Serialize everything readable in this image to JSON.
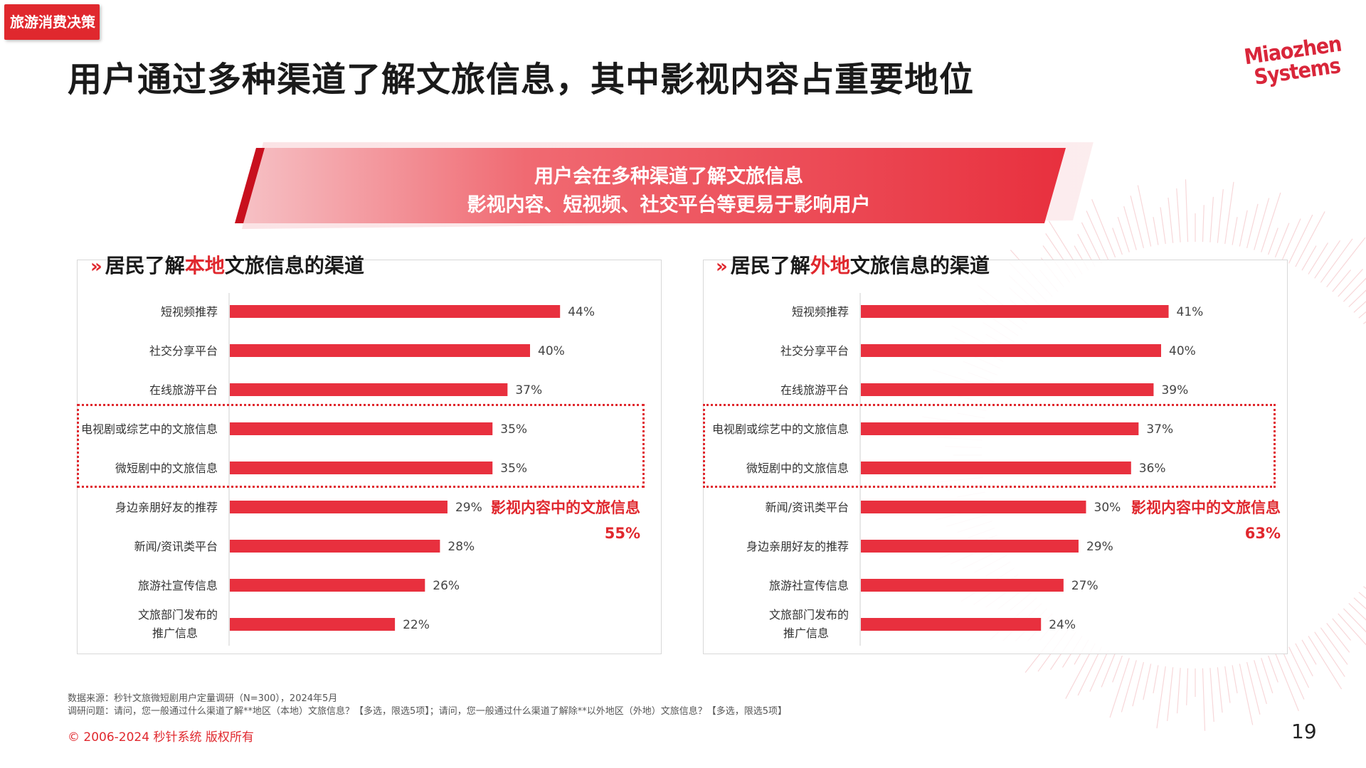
{
  "tag": "旅游消费决策",
  "title": "用户通过多种渠道了解文旅信息，其中影视内容占重要地位",
  "logo": {
    "line1": "Miaozhen",
    "line2": "Systems"
  },
  "banner": {
    "line1": "用户会在多种渠道了解文旅信息",
    "line2": "影视内容、短视频、社交平台等更易于影响用户"
  },
  "colors": {
    "accent": "#e0282e",
    "bar": "#e8303e"
  },
  "chart_data": [
    {
      "type": "bar",
      "orientation": "horizontal",
      "title_parts": [
        "居民了解",
        "本地",
        "文旅信息的渠道"
      ],
      "categories": [
        "短视频推荐",
        "社交分享平台",
        "在线旅游平台",
        "电视剧或综艺中的文旅信息",
        "微短剧中的文旅信息",
        "身边亲朋好友的推荐",
        "新闻/资讯类平台",
        "旅游社宣传信息",
        "文旅部门发布的推广信息"
      ],
      "values": [
        44,
        40,
        37,
        35,
        35,
        29,
        28,
        26,
        22
      ],
      "value_labels": [
        "44%",
        "40%",
        "37%",
        "35%",
        "35%",
        "29%",
        "28%",
        "26%",
        "22%"
      ],
      "highlighted_categories": [
        "电视剧或综艺中的文旅信息",
        "微短剧中的文旅信息"
      ],
      "annotation": {
        "label": "影视内容中的文旅信息",
        "value": "55%"
      }
    },
    {
      "type": "bar",
      "orientation": "horizontal",
      "title_parts": [
        "居民了解",
        "外地",
        "文旅信息的渠道"
      ],
      "categories": [
        "短视频推荐",
        "社交分享平台",
        "在线旅游平台",
        "电视剧或综艺中的文旅信息",
        "微短剧中的文旅信息",
        "新闻/资讯类平台",
        "身边亲朋好友的推荐",
        "旅游社宣传信息",
        "文旅部门发布的推广信息"
      ],
      "values": [
        41,
        40,
        39,
        37,
        36,
        30,
        29,
        27,
        24
      ],
      "value_labels": [
        "41%",
        "40%",
        "39%",
        "37%",
        "36%",
        "30%",
        "29%",
        "27%",
        "24%"
      ],
      "highlighted_categories": [
        "电视剧或综艺中的文旅信息",
        "微短剧中的文旅信息"
      ],
      "annotation": {
        "label": "影视内容中的文旅信息",
        "value": "63%"
      }
    }
  ],
  "notes": {
    "source": "数据来源：秒针文旅微短剧用户定量调研（N=300），2024年5月",
    "question": "调研问题：请问，您一般通过什么渠道了解**地区（本地）文旅信息？【多选，限选5项】；请问，您一般通过什么渠道了解除**以外地区（外地）文旅信息？【多选，限选5项】"
  },
  "copyright": "© 2006-2024 秒针系统 版权所有",
  "page_number": "19"
}
